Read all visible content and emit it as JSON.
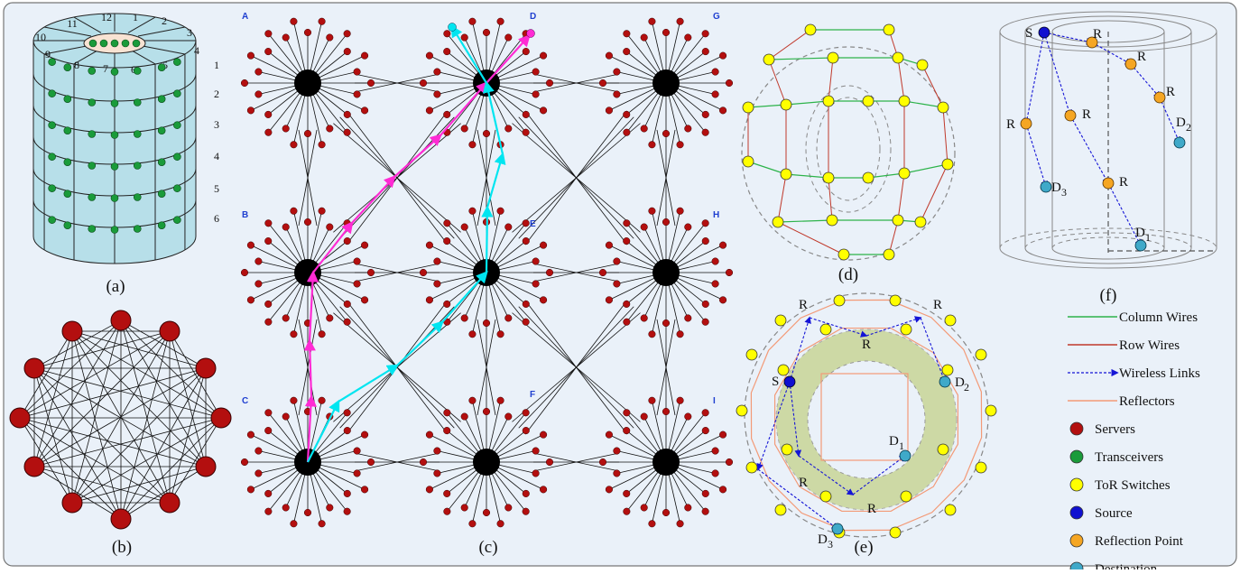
{
  "panels": {
    "a": "(a)",
    "b": "(b)",
    "c": "(c)",
    "d": "(d)",
    "e": "(e)",
    "f": "(f)"
  },
  "cylinder": {
    "sector_numbers": [
      "12",
      "1",
      "2",
      "3",
      "4",
      "5",
      "6",
      "7",
      "8",
      "9",
      "10",
      "11"
    ],
    "row_numbers": [
      "1",
      "2",
      "3",
      "4",
      "5",
      "6"
    ]
  },
  "grid": {
    "node_labels": [
      "A",
      "D",
      "G",
      "B",
      "E",
      "H",
      "C",
      "F",
      "I"
    ]
  },
  "panel_e": {
    "labels": [
      "R",
      "R",
      "R",
      "S",
      "D",
      "2",
      "D",
      "1",
      "R",
      "R",
      "D",
      "3"
    ]
  },
  "panel_f": {
    "labels": [
      "S",
      "R",
      "R",
      "R",
      "R",
      "R",
      "D",
      "2",
      "D",
      "3",
      "R",
      "D",
      "1"
    ]
  },
  "legend": {
    "items": [
      {
        "label": "Column Wires",
        "kind": "line",
        "color": "#2db34a"
      },
      {
        "label": "Row Wires",
        "kind": "line",
        "color": "#c0392b"
      },
      {
        "label": "Wireless Links",
        "kind": "arrow",
        "color": "#1515d6"
      },
      {
        "label": "Reflectors",
        "kind": "line",
        "color": "#f39a77"
      },
      {
        "label": "Servers",
        "kind": "dot",
        "color": "#b30f0f"
      },
      {
        "label": "Transceivers",
        "kind": "dot",
        "color": "#1a9b3a"
      },
      {
        "label": "ToR Switches",
        "kind": "dot",
        "color": "#ffff00"
      },
      {
        "label": "Source",
        "kind": "dot",
        "color": "#1010d0"
      },
      {
        "label": "Reflection Point",
        "kind": "dot",
        "color": "#f5a623"
      },
      {
        "label": "Destination",
        "kind": "dot",
        "color": "#3fa9c9"
      }
    ]
  }
}
